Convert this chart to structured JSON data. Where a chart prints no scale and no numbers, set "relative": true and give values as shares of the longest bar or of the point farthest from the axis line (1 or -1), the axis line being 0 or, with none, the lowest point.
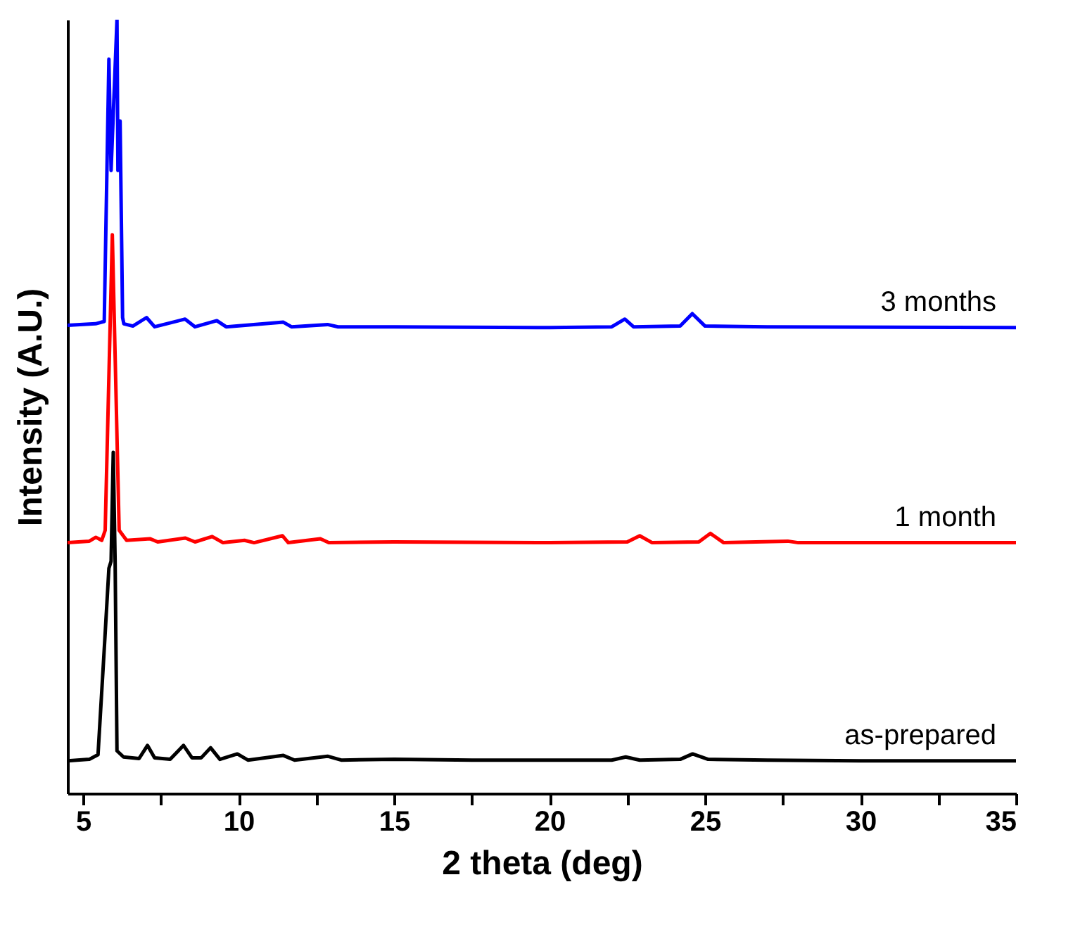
{
  "chart_data": {
    "type": "line",
    "relative": true,
    "xlabel": "2 theta (deg)",
    "ylabel": "Intensity (A.U.)",
    "xlim": [
      4.5,
      35
    ],
    "xticks": [
      5,
      {
        "value": 7.5,
        "label": null
      },
      10,
      {
        "value": 12.5,
        "label": null
      },
      15,
      {
        "value": 17.5,
        "label": null
      },
      20,
      {
        "value": 22.5,
        "label": null
      },
      25,
      {
        "value": 27.5,
        "label": null
      },
      30,
      {
        "value": 32.5,
        "label": null
      },
      35
    ],
    "grid": false,
    "marker": "none",
    "line_style": "solid",
    "series": [
      {
        "name": "as-prepared",
        "color": "#000000",
        "x": [
          4.5,
          5.2,
          5.48,
          5.7,
          5.83,
          5.9,
          5.97,
          6.03,
          6.09,
          6.3,
          6.8,
          7.07,
          7.3,
          7.8,
          8.23,
          8.5,
          8.8,
          9.1,
          9.4,
          9.96,
          10.3,
          11.44,
          11.8,
          12.86,
          13.3,
          15,
          17.5,
          20,
          22.0,
          22.45,
          22.9,
          24.2,
          24.6,
          25.1,
          27,
          30,
          35
        ],
        "values": [
          0.042,
          0.044,
          0.05,
          0.2,
          0.291,
          0.3,
          0.441,
          0.3,
          0.055,
          0.047,
          0.045,
          0.062,
          0.046,
          0.044,
          0.062,
          0.046,
          0.046,
          0.059,
          0.044,
          0.051,
          0.043,
          0.049,
          0.043,
          0.048,
          0.043,
          0.044,
          0.043,
          0.043,
          0.043,
          0.047,
          0.043,
          0.044,
          0.051,
          0.044,
          0.043,
          0.042,
          0.042
        ]
      },
      {
        "name": "1 month",
        "color": "#ff0000",
        "x": [
          4.5,
          5.2,
          5.41,
          5.6,
          5.71,
          5.94,
          6.16,
          6.4,
          7.16,
          7.4,
          8.29,
          8.6,
          9.15,
          9.5,
          10.19,
          10.5,
          11.41,
          11.6,
          12.63,
          12.9,
          15,
          20,
          22.5,
          22.9,
          23.3,
          24.8,
          25.17,
          25.6,
          27.66,
          28,
          35
        ],
        "values": [
          0.324,
          0.326,
          0.331,
          0.327,
          0.34,
          0.722,
          0.34,
          0.327,
          0.329,
          0.325,
          0.33,
          0.325,
          0.332,
          0.324,
          0.327,
          0.324,
          0.333,
          0.324,
          0.329,
          0.324,
          0.325,
          0.324,
          0.325,
          0.333,
          0.324,
          0.325,
          0.336,
          0.324,
          0.326,
          0.324,
          0.324
        ]
      },
      {
        "name": "3 months",
        "color": "#0000ff",
        "x": [
          4.5,
          5.4,
          5.68,
          5.83,
          5.9,
          6.09,
          6.12,
          6.19,
          6.27,
          6.31,
          6.6,
          7.04,
          7.3,
          8.28,
          8.6,
          9.3,
          9.6,
          11.44,
          11.7,
          12.86,
          13.2,
          15,
          20,
          22.0,
          22.42,
          22.7,
          24.2,
          24.59,
          25.0,
          27,
          35
        ],
        "values": [
          0.605,
          0.607,
          0.61,
          0.949,
          0.805,
          1,
          0.805,
          0.869,
          0.615,
          0.607,
          0.604,
          0.615,
          0.603,
          0.613,
          0.603,
          0.611,
          0.603,
          0.609,
          0.603,
          0.606,
          0.603,
          0.603,
          0.602,
          0.603,
          0.613,
          0.603,
          0.604,
          0.62,
          0.604,
          0.603,
          0.602
        ]
      }
    ]
  }
}
